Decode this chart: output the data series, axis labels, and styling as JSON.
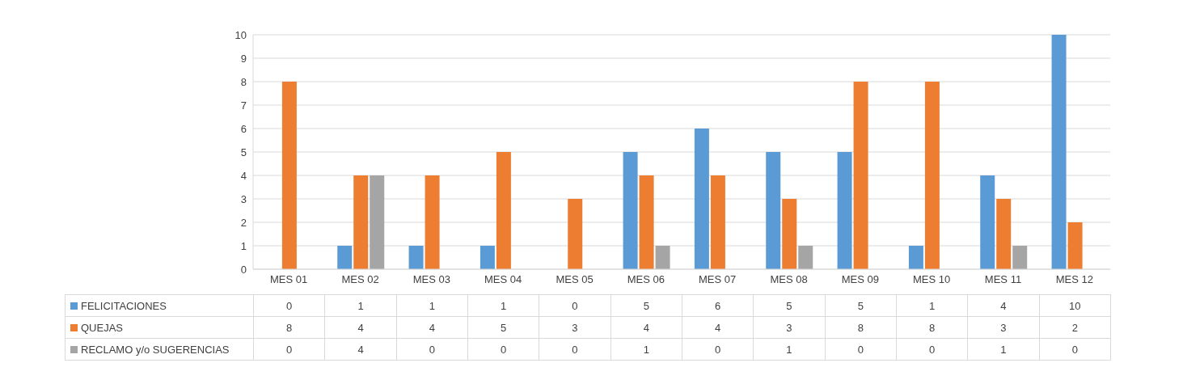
{
  "chart_data": {
    "type": "bar",
    "categories": [
      "MES 01",
      "MES 02",
      "MES 03",
      "MES 04",
      "MES 05",
      "MES 06",
      "MES 07",
      "MES 08",
      "MES 09",
      "MES 10",
      "MES 11",
      "MES 12"
    ],
    "series": [
      {
        "name": "FELICITACIONES",
        "color": "#5b9bd5",
        "values": [
          0,
          1,
          1,
          1,
          0,
          5,
          6,
          5,
          5,
          1,
          4,
          10
        ]
      },
      {
        "name": "QUEJAS",
        "color": "#ed7d31",
        "values": [
          8,
          4,
          4,
          5,
          3,
          4,
          4,
          3,
          8,
          8,
          3,
          2
        ]
      },
      {
        "name": "RECLAMO y/o SUGERENCIAS",
        "color": "#a5a5a5",
        "values": [
          0,
          4,
          0,
          0,
          0,
          1,
          0,
          1,
          0,
          0,
          1,
          0
        ]
      }
    ],
    "ylim": [
      0,
      10
    ],
    "yticks": [
      0,
      1,
      2,
      3,
      4,
      5,
      6,
      7,
      8,
      9,
      10
    ],
    "grid": "y",
    "legend": "bottom",
    "data_labels": true
  }
}
